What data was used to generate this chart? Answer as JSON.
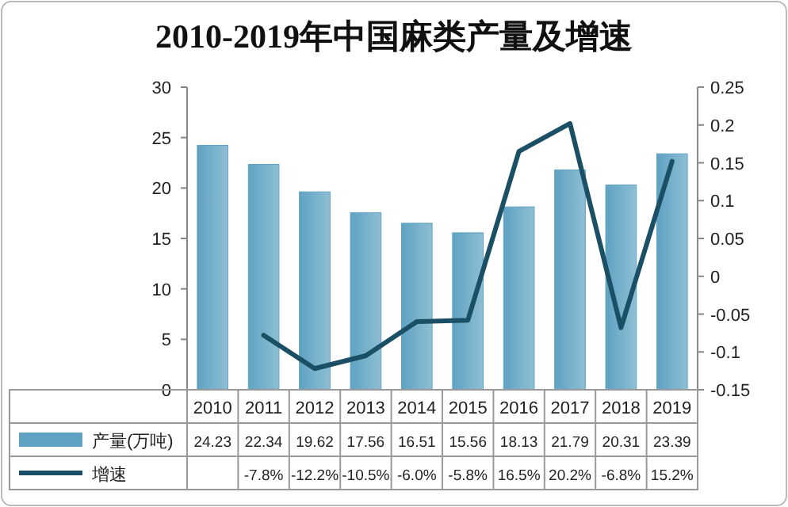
{
  "chart_data": {
    "type": "bar",
    "title": "2010-2019年中国麻类产量及增速",
    "categories": [
      "2010",
      "2011",
      "2012",
      "2013",
      "2014",
      "2015",
      "2016",
      "2017",
      "2018",
      "2019"
    ],
    "series": [
      {
        "name": "产量(万吨)",
        "color": "#5fa2c2",
        "values": [
          24.23,
          22.34,
          19.62,
          17.56,
          16.51,
          15.56,
          18.13,
          21.79,
          20.31,
          23.39
        ],
        "value_labels": [
          "24.23",
          "22.34",
          "19.62",
          "17.56",
          "16.51",
          "15.56",
          "18.13",
          "21.79",
          "20.31",
          "23.39"
        ]
      },
      {
        "name": "增速",
        "type": "line",
        "axis": "y2",
        "color": "#1b4f66",
        "values": [
          null,
          -0.078,
          -0.122,
          -0.105,
          -0.06,
          -0.058,
          0.165,
          0.202,
          -0.068,
          0.152
        ],
        "value_labels": [
          null,
          "-7.8%",
          "-12.2%",
          "-10.5%",
          "-6.0%",
          "-5.8%",
          "16.5%",
          "20.2%",
          "-6.8%",
          "15.2%"
        ]
      }
    ],
    "ylim": [
      0,
      30
    ],
    "yticks": [
      0,
      5,
      10,
      15,
      20,
      25,
      30
    ],
    "y2lim": [
      -0.15,
      0.25
    ],
    "y2ticks": [
      -0.15,
      -0.1,
      -0.05,
      0,
      0.05,
      0.1,
      0.15,
      0.2,
      0.25
    ],
    "grid": false,
    "legend": "bottom",
    "marker": "none",
    "line_style": "solid"
  }
}
